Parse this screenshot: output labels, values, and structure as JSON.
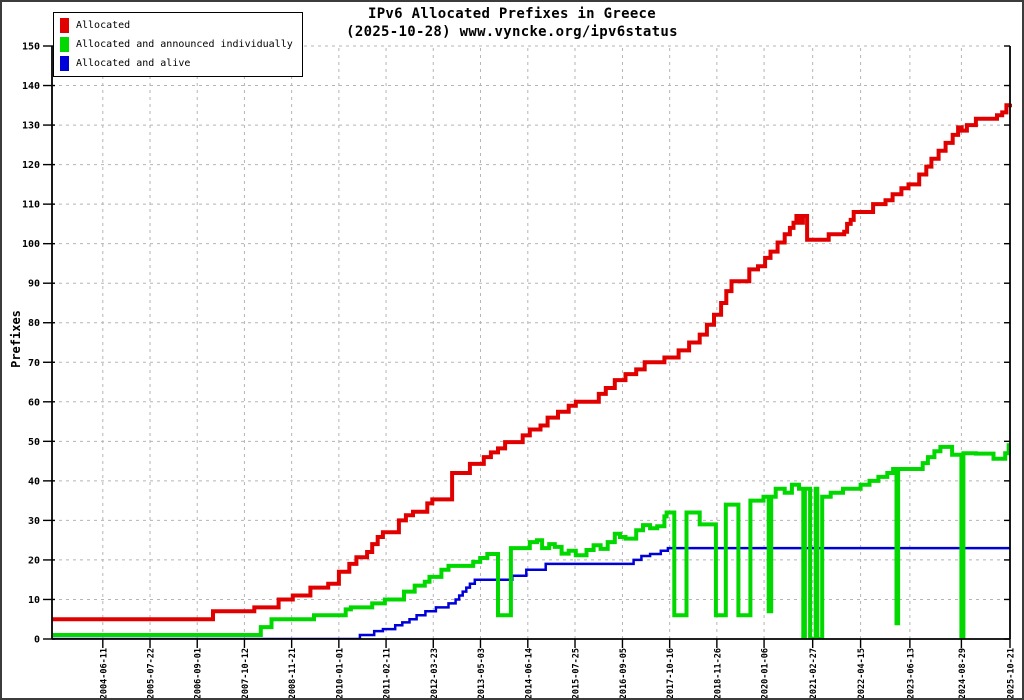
{
  "chart_data": {
    "type": "line",
    "title": "IPv6 Allocated Prefixes in Greece",
    "subtitle": "(2025-10-28) www.vyncke.org/ipv6status",
    "xlabel": "",
    "ylabel": "Prefixes",
    "ylim": [
      0,
      150
    ],
    "ytick_interval": 10,
    "grid": true,
    "legend_position": "top-left",
    "interpolation": "step-after",
    "x_domain": [
      "2003-04-01",
      "2025-10-21"
    ],
    "xticks": [
      "2004-06-11",
      "2005-07-22",
      "2006-09-01",
      "2007-10-12",
      "2008-11-21",
      "2010-01-01",
      "2011-02-11",
      "2012-03-23",
      "2013-05-03",
      "2014-06-14",
      "2015-07-25",
      "2016-09-05",
      "2017-10-16",
      "2018-11-26",
      "2020-01-06",
      "2021-02-27",
      "2022-04-15",
      "2023-06-13",
      "2024-08-29",
      "2025-10-21"
    ],
    "colors": {
      "grid": "#b5b5b5",
      "axis": "#000000",
      "background": "#ffffff"
    },
    "series": [
      {
        "name": "Allocated and alive",
        "color": "#0000d8",
        "width": 2.5,
        "points": [
          [
            "2003-04-01",
            0
          ],
          [
            "2010-07-01",
            1
          ],
          [
            "2010-11-01",
            2
          ],
          [
            "2011-01-15",
            2.5
          ],
          [
            "2011-05-01",
            3.5
          ],
          [
            "2011-07-01",
            4.2
          ],
          [
            "2011-09-01",
            5
          ],
          [
            "2011-11-01",
            6
          ],
          [
            "2012-01-15",
            7
          ],
          [
            "2012-04-15",
            8
          ],
          [
            "2012-08-01",
            9
          ],
          [
            "2012-10-01",
            10
          ],
          [
            "2012-11-01",
            11
          ],
          [
            "2012-12-01",
            12
          ],
          [
            "2013-01-01",
            13
          ],
          [
            "2013-02-01",
            14
          ],
          [
            "2013-03-15",
            15
          ],
          [
            "2014-02-01",
            16
          ],
          [
            "2014-06-01",
            17.5
          ],
          [
            "2014-11-15",
            19
          ],
          [
            "2016-12-10",
            20
          ],
          [
            "2017-02-15",
            21
          ],
          [
            "2017-05-01",
            21.5
          ],
          [
            "2017-08-01",
            22.3
          ],
          [
            "2017-10-01",
            23
          ],
          [
            "2025-10-21",
            23
          ]
        ]
      },
      {
        "name": "Allocated and announced individually",
        "color": "#00d800",
        "width": 4,
        "points": [
          [
            "2003-04-01",
            1
          ],
          [
            "2008-03-01",
            3
          ],
          [
            "2008-06-01",
            5
          ],
          [
            "2009-06-01",
            6
          ],
          [
            "2010-03-01",
            7.5
          ],
          [
            "2010-04-15",
            8
          ],
          [
            "2010-10-15",
            9
          ],
          [
            "2011-02-01",
            10
          ],
          [
            "2011-07-15",
            12
          ],
          [
            "2011-10-15",
            13.5
          ],
          [
            "2012-01-10",
            14.5
          ],
          [
            "2012-02-20",
            15.7
          ],
          [
            "2012-06-01",
            17.5
          ],
          [
            "2012-08-01",
            18.5
          ],
          [
            "2013-03-01",
            19.5
          ],
          [
            "2013-05-01",
            20.5
          ],
          [
            "2013-07-01",
            21.5
          ],
          [
            "2013-10-01",
            6
          ],
          [
            "2014-01-20",
            23
          ],
          [
            "2014-07-01",
            24.5
          ],
          [
            "2014-09-01",
            25
          ],
          [
            "2014-10-15",
            23
          ],
          [
            "2014-12-15",
            24
          ],
          [
            "2015-02-01",
            23.3
          ],
          [
            "2015-04-01",
            21.6
          ],
          [
            "2015-06-01",
            22.3
          ],
          [
            "2015-08-01",
            21.2
          ],
          [
            "2015-11-01",
            22.5
          ],
          [
            "2016-01-01",
            23.7
          ],
          [
            "2016-03-01",
            22.8
          ],
          [
            "2016-05-01",
            24.5
          ],
          [
            "2016-07-01",
            26.6
          ],
          [
            "2016-08-15",
            25.8
          ],
          [
            "2016-10-01",
            25.4
          ],
          [
            "2017-01-01",
            27.5
          ],
          [
            "2017-03-01",
            28.8
          ],
          [
            "2017-05-01",
            28
          ],
          [
            "2017-07-01",
            28.5
          ],
          [
            "2017-09-01",
            31
          ],
          [
            "2017-09-20",
            32
          ],
          [
            "2017-11-25",
            6
          ],
          [
            "2018-03-10",
            32
          ],
          [
            "2018-07-01",
            29
          ],
          [
            "2018-11-18",
            6
          ],
          [
            "2019-02-11",
            34
          ],
          [
            "2019-05-30",
            6
          ],
          [
            "2019-09-10",
            35
          ],
          [
            "2020-01-01",
            36
          ],
          [
            "2020-02-15",
            7
          ],
          [
            "2020-03-07",
            36
          ],
          [
            "2020-04-15",
            38
          ],
          [
            "2020-07-01",
            37
          ],
          [
            "2020-09-01",
            39
          ],
          [
            "2020-11-01",
            38
          ],
          [
            "2020-12-08",
            0
          ],
          [
            "2020-12-22",
            38
          ],
          [
            "2021-02-05",
            0
          ],
          [
            "2021-03-25",
            38
          ],
          [
            "2021-04-08",
            0
          ],
          [
            "2021-05-20",
            36
          ],
          [
            "2021-08-01",
            37
          ],
          [
            "2021-11-15",
            38
          ],
          [
            "2022-04-15",
            39
          ],
          [
            "2022-07-01",
            40
          ],
          [
            "2022-09-15",
            41
          ],
          [
            "2022-12-01",
            42
          ],
          [
            "2023-01-20",
            43
          ],
          [
            "2023-02-18",
            4
          ],
          [
            "2023-03-04",
            43
          ],
          [
            "2023-10-01",
            44.5
          ],
          [
            "2023-11-15",
            46
          ],
          [
            "2024-01-10",
            47.5
          ],
          [
            "2024-03-01",
            48.6
          ],
          [
            "2024-06-10",
            46.6
          ],
          [
            "2024-08-29",
            0
          ],
          [
            "2024-09-15",
            47
          ],
          [
            "2025-01-01",
            46.9
          ],
          [
            "2025-06-01",
            45.6
          ],
          [
            "2025-09-10",
            47
          ],
          [
            "2025-10-10",
            49
          ],
          [
            "2025-10-21",
            49
          ]
        ]
      },
      {
        "name": "Allocated",
        "color": "#e10000",
        "width": 4,
        "points": [
          [
            "2003-04-01",
            5
          ],
          [
            "2007-01-15",
            7
          ],
          [
            "2008-01-05",
            8
          ],
          [
            "2008-08-01",
            10
          ],
          [
            "2008-12-01",
            11
          ],
          [
            "2009-05-01",
            13
          ],
          [
            "2009-10-01",
            14
          ],
          [
            "2010-01-01",
            17
          ],
          [
            "2010-04-01",
            19
          ],
          [
            "2010-06-01",
            20.7
          ],
          [
            "2010-09-01",
            22
          ],
          [
            "2010-10-15",
            24
          ],
          [
            "2010-12-01",
            25.8
          ],
          [
            "2011-01-15",
            27
          ],
          [
            "2011-06-01",
            30
          ],
          [
            "2011-08-01",
            31.3
          ],
          [
            "2011-10-01",
            32.2
          ],
          [
            "2012-02-01",
            34.3
          ],
          [
            "2012-03-15",
            35.3
          ],
          [
            "2012-09-01",
            42
          ],
          [
            "2013-02-01",
            44.3
          ],
          [
            "2013-06-01",
            46
          ],
          [
            "2013-08-01",
            47.2
          ],
          [
            "2013-10-01",
            48.2
          ],
          [
            "2013-12-01",
            49.8
          ],
          [
            "2014-05-01",
            51.5
          ],
          [
            "2014-07-01",
            53
          ],
          [
            "2014-10-01",
            54
          ],
          [
            "2014-12-01",
            56
          ],
          [
            "2015-03-01",
            57.5
          ],
          [
            "2015-06-01",
            59
          ],
          [
            "2015-08-01",
            60
          ],
          [
            "2016-02-15",
            62
          ],
          [
            "2016-04-15",
            63.5
          ],
          [
            "2016-07-01",
            65.5
          ],
          [
            "2016-10-01",
            67
          ],
          [
            "2017-01-01",
            68.2
          ],
          [
            "2017-03-15",
            70
          ],
          [
            "2017-09-01",
            71.2
          ],
          [
            "2018-01-01",
            73
          ],
          [
            "2018-04-01",
            75
          ],
          [
            "2018-07-01",
            77
          ],
          [
            "2018-09-01",
            79.5
          ],
          [
            "2018-11-01",
            82
          ],
          [
            "2019-01-01",
            85
          ],
          [
            "2019-02-15",
            88
          ],
          [
            "2019-04-01",
            90.5
          ],
          [
            "2019-09-01",
            93.5
          ],
          [
            "2019-11-15",
            94.3
          ],
          [
            "2020-01-15",
            96.4
          ],
          [
            "2020-03-01",
            98
          ],
          [
            "2020-05-01",
            100.3
          ],
          [
            "2020-07-01",
            102.4
          ],
          [
            "2020-08-15",
            104
          ],
          [
            "2020-09-15",
            105.3
          ],
          [
            "2020-10-10",
            107
          ],
          [
            "2020-11-10",
            105.3
          ],
          [
            "2020-12-05",
            107
          ],
          [
            "2021-01-10",
            101
          ],
          [
            "2021-07-15",
            102.4
          ],
          [
            "2021-11-25",
            103
          ],
          [
            "2021-12-20",
            105
          ],
          [
            "2022-01-20",
            106
          ],
          [
            "2022-02-15",
            108
          ],
          [
            "2022-08-01",
            110
          ],
          [
            "2022-11-15",
            111
          ],
          [
            "2023-01-15",
            112.5
          ],
          [
            "2023-04-01",
            114
          ],
          [
            "2023-06-01",
            115
          ],
          [
            "2023-09-01",
            117.5
          ],
          [
            "2023-11-01",
            119.5
          ],
          [
            "2023-12-15",
            121.5
          ],
          [
            "2024-02-15",
            123.5
          ],
          [
            "2024-04-15",
            125.5
          ],
          [
            "2024-06-15",
            127.5
          ],
          [
            "2024-08-01",
            129.4
          ],
          [
            "2024-09-01",
            128.6
          ],
          [
            "2024-10-15",
            130
          ],
          [
            "2025-01-01",
            131.6
          ],
          [
            "2025-07-01",
            132.5
          ],
          [
            "2025-08-15",
            133.2
          ],
          [
            "2025-09-20",
            135
          ],
          [
            "2025-10-21",
            135.4
          ]
        ]
      }
    ],
    "legend_order": [
      "Allocated",
      "Allocated and announced individually",
      "Allocated and alive"
    ]
  }
}
